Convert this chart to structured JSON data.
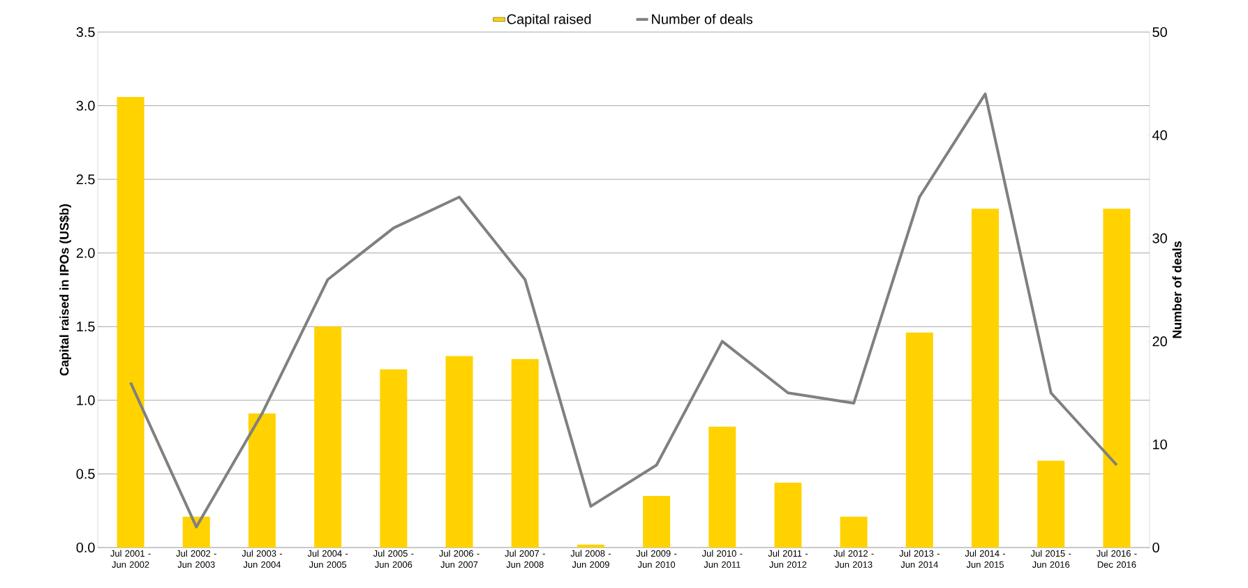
{
  "chart_data": {
    "type": "bar",
    "ylabel": "Capital raised in IPOs (US$b)",
    "y2label": "Number of deals",
    "categories": [
      "Jul 2001 - Jun 2002",
      "Jul 2002 - Jun 2003",
      "Jul 2003 - Jun 2004",
      "Jul 2004 - Jun 2005",
      "Jul 2005 - Jun 2006",
      "Jul 2006 - Jun 2007",
      "Jul 2007 - Jun 2008",
      "Jul 2008 - Jun 2009",
      "Jul 2009 - Jun 2010",
      "Jul 2010 - Jun 2011",
      "Jul 2011 - Jun 2012",
      "Jul 2012 - Jun 2013",
      "Jul 2013 - Jun 2014",
      "Jul 2014 - Jun 2015",
      "Jul 2015 - Jun 2016",
      "Jul 2016 - Dec 2016"
    ],
    "series": [
      {
        "name": "Capital raised",
        "type": "bar",
        "color": "#ffd200",
        "values": [
          3.06,
          0.21,
          0.91,
          1.5,
          1.21,
          1.3,
          1.28,
          0.02,
          0.35,
          0.82,
          0.44,
          0.21,
          1.46,
          2.3,
          0.59,
          2.3
        ]
      },
      {
        "name": "Number of deals",
        "type": "line",
        "axis": "y2",
        "color": "#808080",
        "values": [
          16,
          2,
          13,
          26,
          31,
          34,
          26,
          4,
          8,
          20,
          15,
          14,
          34,
          44,
          15,
          8
        ]
      }
    ],
    "ylim": [
      0,
      3.5
    ],
    "yticks": [
      {
        "value": 0,
        "label": "0.0"
      },
      {
        "value": 0.5,
        "label": "0.5"
      },
      {
        "value": 1,
        "label": "1.0"
      },
      {
        "value": 1.5,
        "label": "1.5"
      },
      {
        "value": 2,
        "label": "2.0"
      },
      {
        "value": 2.5,
        "label": "2.5"
      },
      {
        "value": 3,
        "label": "3.0"
      },
      {
        "value": 3.5,
        "label": "3.5"
      }
    ],
    "y2lim": [
      0,
      50
    ],
    "y2ticks": [
      0,
      10,
      20,
      30,
      40,
      50
    ],
    "grid": "y",
    "legend": "top",
    "marker": "none",
    "line_style": "solid"
  }
}
